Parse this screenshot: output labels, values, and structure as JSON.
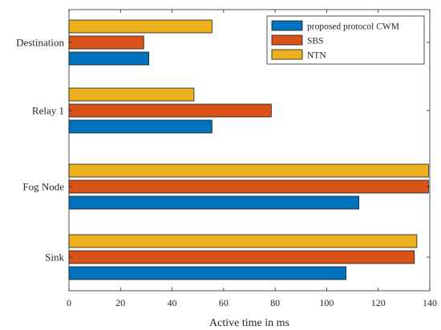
{
  "chart_data": {
    "type": "bar",
    "orientation": "horizontal",
    "categories": [
      "Destination",
      "Relay 1",
      "Fog Node",
      "Sink"
    ],
    "series": [
      {
        "name": "proposed protocol CWM",
        "color": "#0072BD",
        "values": [
          31,
          55.5,
          112.5,
          107.5
        ]
      },
      {
        "name": "SBS",
        "color": "#D95319",
        "values": [
          29,
          78.5,
          139.5,
          134
        ]
      },
      {
        "name": "NTN",
        "color": "#EDB120",
        "values": [
          55.5,
          48.5,
          139.5,
          135
        ]
      }
    ],
    "xlabel": "Active time in ms",
    "xlim": [
      0,
      140
    ],
    "xticks": [
      "0",
      "20",
      "40",
      "60",
      "80",
      "100",
      "120",
      "140"
    ],
    "grid": false,
    "legend": "top-right"
  }
}
